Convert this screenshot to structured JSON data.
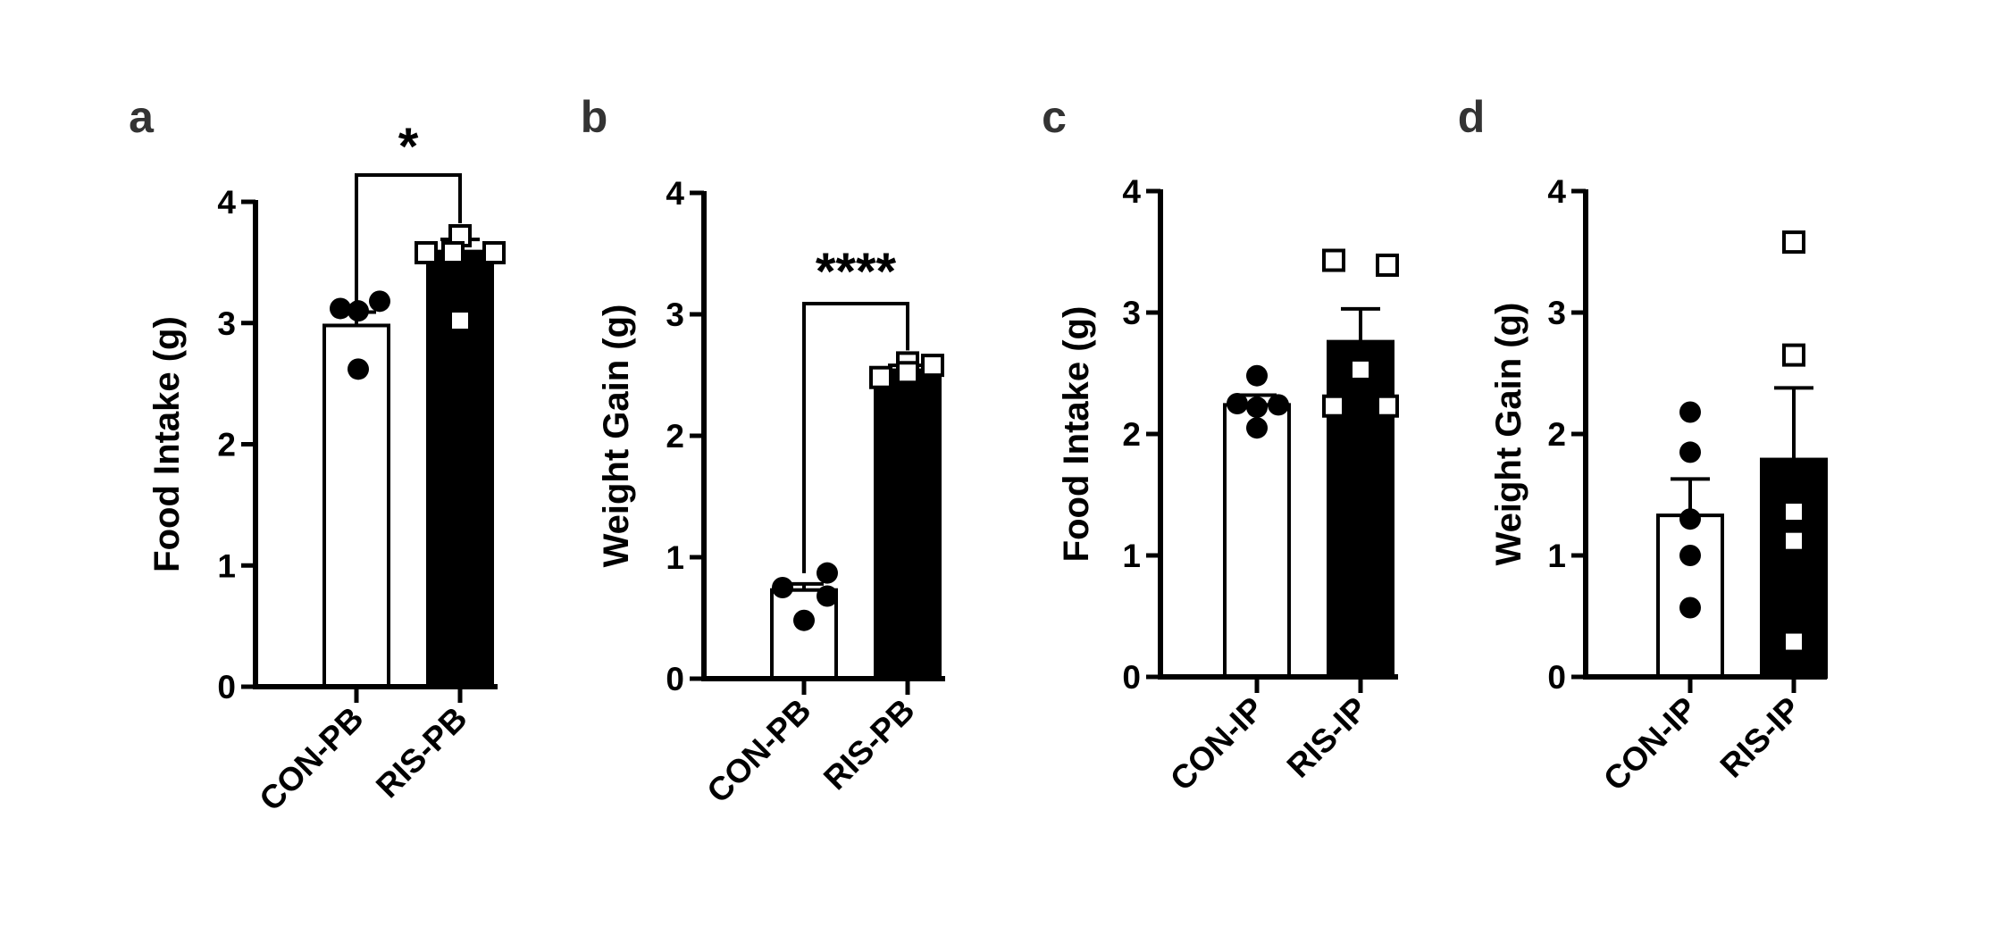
{
  "chart_data": [
    {
      "panel": "a",
      "type": "bar",
      "ylabel": "Food Intake (g)",
      "ylim": [
        0,
        4
      ],
      "yticks": [
        "0",
        "1",
        "2",
        "3",
        "4"
      ],
      "categories": [
        "CON-PB",
        "RIS-PB"
      ],
      "bars": [
        {
          "mean": 2.98,
          "sem": 0.11,
          "fill": "#ffffff",
          "marker": "circle-filled",
          "points": [
            3.12,
            3.18,
            3.1,
            2.62
          ]
        },
        {
          "mean": 3.59,
          "sem": 0.1,
          "fill": "#000000",
          "marker": "square-open",
          "points": [
            3.72,
            3.58,
            3.58,
            3.58,
            3.02
          ]
        }
      ],
      "significance": "*"
    },
    {
      "panel": "b",
      "type": "bar",
      "ylabel": "Weight Gain (g)",
      "ylim": [
        0,
        4
      ],
      "yticks": [
        "0",
        "1",
        "2",
        "3",
        "4"
      ],
      "categories": [
        "CON-PB",
        "RIS-PB"
      ],
      "bars": [
        {
          "mean": 0.73,
          "sem": 0.05,
          "fill": "#ffffff",
          "marker": "circle-filled",
          "points": [
            0.75,
            0.68,
            0.87,
            0.48
          ]
        },
        {
          "mean": 2.54,
          "sem": 0.04,
          "fill": "#000000",
          "marker": "square-open",
          "points": [
            2.48,
            2.6,
            2.58,
            2.52
          ]
        }
      ],
      "significance": "****"
    },
    {
      "panel": "c",
      "type": "bar",
      "ylabel": "Food Intake (g)",
      "ylim": [
        0,
        4
      ],
      "yticks": [
        "0",
        "1",
        "2",
        "3",
        "4"
      ],
      "categories": [
        "CON-IP",
        "RIS-IP"
      ],
      "bars": [
        {
          "mean": 2.24,
          "sem": 0.08,
          "fill": "#ffffff",
          "marker": "circle-filled",
          "points": [
            2.48,
            2.25,
            2.24,
            2.22,
            2.05
          ]
        },
        {
          "mean": 2.76,
          "sem": 0.27,
          "fill": "#000000",
          "marker": "square-open",
          "points": [
            3.43,
            3.39,
            2.53,
            2.23,
            2.23
          ]
        }
      ],
      "significance": ""
    },
    {
      "panel": "d",
      "type": "bar",
      "ylabel": "Weight Gain (g)",
      "ylim": [
        0,
        4
      ],
      "yticks": [
        "0",
        "1",
        "2",
        "3",
        "4"
      ],
      "categories": [
        "CON-IP",
        "RIS-IP"
      ],
      "bars": [
        {
          "mean": 1.33,
          "sem": 0.3,
          "fill": "#ffffff",
          "marker": "circle-filled",
          "points": [
            2.18,
            1.85,
            1.3,
            1.0,
            0.57
          ]
        },
        {
          "mean": 1.79,
          "sem": 0.59,
          "fill": "#000000",
          "marker": "square-open",
          "points": [
            3.58,
            2.65,
            1.36,
            1.12,
            0.29
          ]
        }
      ],
      "significance": ""
    }
  ]
}
